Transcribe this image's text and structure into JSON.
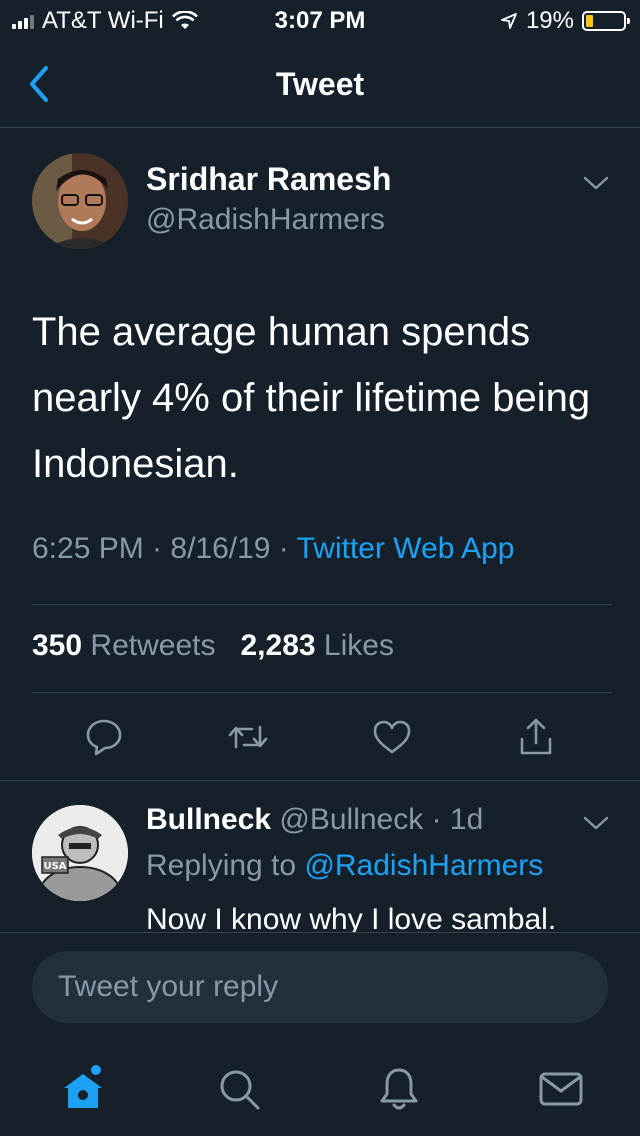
{
  "status_bar": {
    "carrier": "AT&T Wi-Fi",
    "time": "3:07 PM",
    "battery": "19%",
    "battery_level": 0.19
  },
  "header": {
    "title": "Tweet",
    "back_icon": "chevron-left-icon"
  },
  "tweet": {
    "author_name": "Sridhar Ramesh",
    "author_handle": "@RadishHarmers",
    "text": "The average human spends nearly 4% of their lifetime being Indonesian.",
    "timestamp": "6:25 PM · 8/16/19 · ",
    "source": "Twitter Web App",
    "retweet_count": "350",
    "retweet_label": "Retweets",
    "like_count": "2,283",
    "like_label": "Likes",
    "actions": [
      "reply-icon",
      "retweet-icon",
      "like-icon",
      "share-icon"
    ]
  },
  "reply": {
    "author_name": "Bullneck",
    "author_handle": "@Bullneck · 1d",
    "replying_to_label": "Replying to ",
    "replying_to_handle": "@RadishHarmers",
    "text": "Now I know why I love sambal.",
    "avatar_text": "USA"
  },
  "composer": {
    "placeholder": "Tweet your reply"
  },
  "tab_bar": {
    "items": [
      "home-icon",
      "search-icon",
      "notifications-icon",
      "messages-icon"
    ]
  },
  "colors": {
    "background": "#15202b",
    "accent": "#1da1f2",
    "secondary_text": "#8899a6",
    "divider": "#38444d"
  }
}
